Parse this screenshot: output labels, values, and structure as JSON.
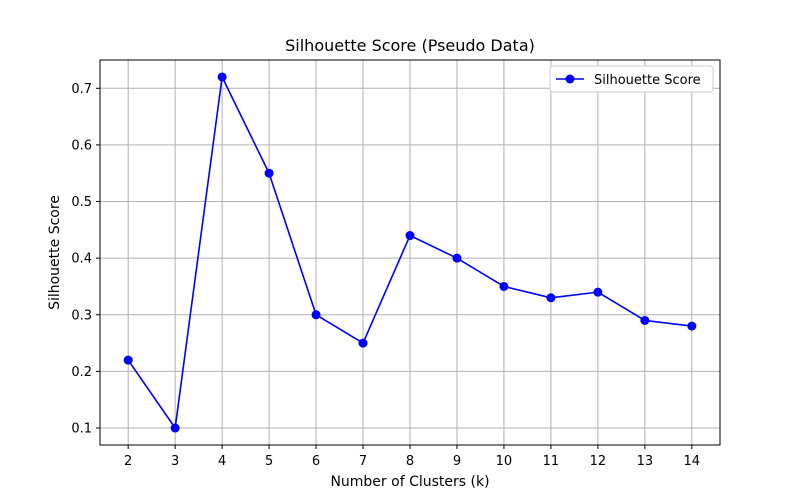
{
  "chart_data": {
    "type": "line",
    "title": "Silhouette Score (Pseudo Data)",
    "xlabel": "Number of Clusters (k)",
    "ylabel": "Silhouette Score",
    "x": [
      2,
      3,
      4,
      5,
      6,
      7,
      8,
      9,
      10,
      11,
      12,
      13,
      14
    ],
    "series": [
      {
        "name": "Silhouette Score",
        "color": "#0000ff",
        "marker": "circle",
        "values": [
          0.22,
          0.1,
          0.72,
          0.55,
          0.3,
          0.25,
          0.44,
          0.4,
          0.35,
          0.33,
          0.34,
          0.29,
          0.28
        ]
      }
    ],
    "xlim": [
      1.4,
      14.6
    ],
    "ylim": [
      0.07,
      0.75
    ],
    "xticks": [
      "2",
      "3",
      "4",
      "5",
      "6",
      "7",
      "8",
      "9",
      "10",
      "11",
      "12",
      "13",
      "14"
    ],
    "yticks": [
      "0.1",
      "0.2",
      "0.3",
      "0.4",
      "0.5",
      "0.6",
      "0.7"
    ],
    "grid": true,
    "legend_position": "upper right",
    "grid_color": "#b0b0b0"
  }
}
